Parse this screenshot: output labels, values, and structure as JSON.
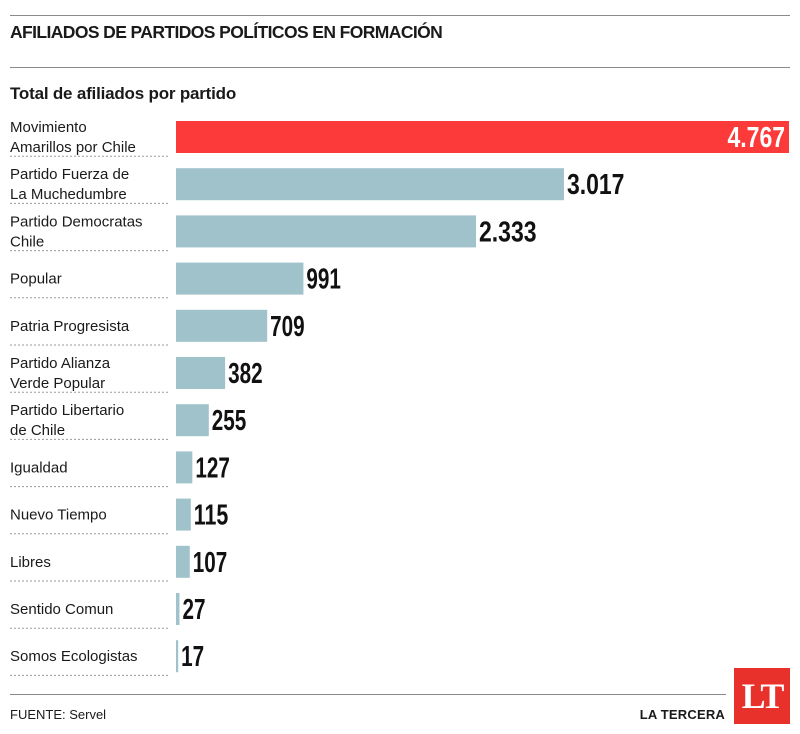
{
  "header": {
    "title": "AFILIADOS DE PARTIDOS POLÍTICOS EN FORMACIÓN",
    "subtitle": "Total de afiliados por partido"
  },
  "footer": {
    "source": "FUENTE: Servel",
    "brand": "LA TERCERA",
    "logo_text": "LT"
  },
  "colors": {
    "highlight": "#fd3a3a",
    "bar": "#a0c2cb",
    "separator": "#9a9a9a"
  },
  "chart_data": {
    "type": "bar",
    "orientation": "horizontal",
    "title": "Total de afiliados por partido",
    "categories": [
      [
        "Movimiento",
        "Amarillos por Chile"
      ],
      [
        "Partido Fuerza de",
        "La Muchedumbre"
      ],
      [
        "Partido Democratas",
        "Chile"
      ],
      [
        "Popular"
      ],
      [
        "Patria Progresista"
      ],
      [
        "Partido Alianza",
        "Verde Popular"
      ],
      [
        "Partido Libertario",
        "de Chile"
      ],
      [
        "Igualdad"
      ],
      [
        "Nuevo Tiempo"
      ],
      [
        "Libres"
      ],
      [
        "Sentido Comun"
      ],
      [
        "Somos Ecologistas"
      ]
    ],
    "values": [
      4767,
      3017,
      2333,
      991,
      709,
      382,
      255,
      127,
      115,
      107,
      27,
      17
    ],
    "value_labels": [
      "4.767",
      "3.017",
      "2.333",
      "991",
      "709",
      "382",
      "255",
      "127",
      "115",
      "107",
      "27",
      "17"
    ],
    "highlighted_index": 0,
    "xlim": [
      0,
      4767
    ],
    "grid": false,
    "legend": "none"
  }
}
